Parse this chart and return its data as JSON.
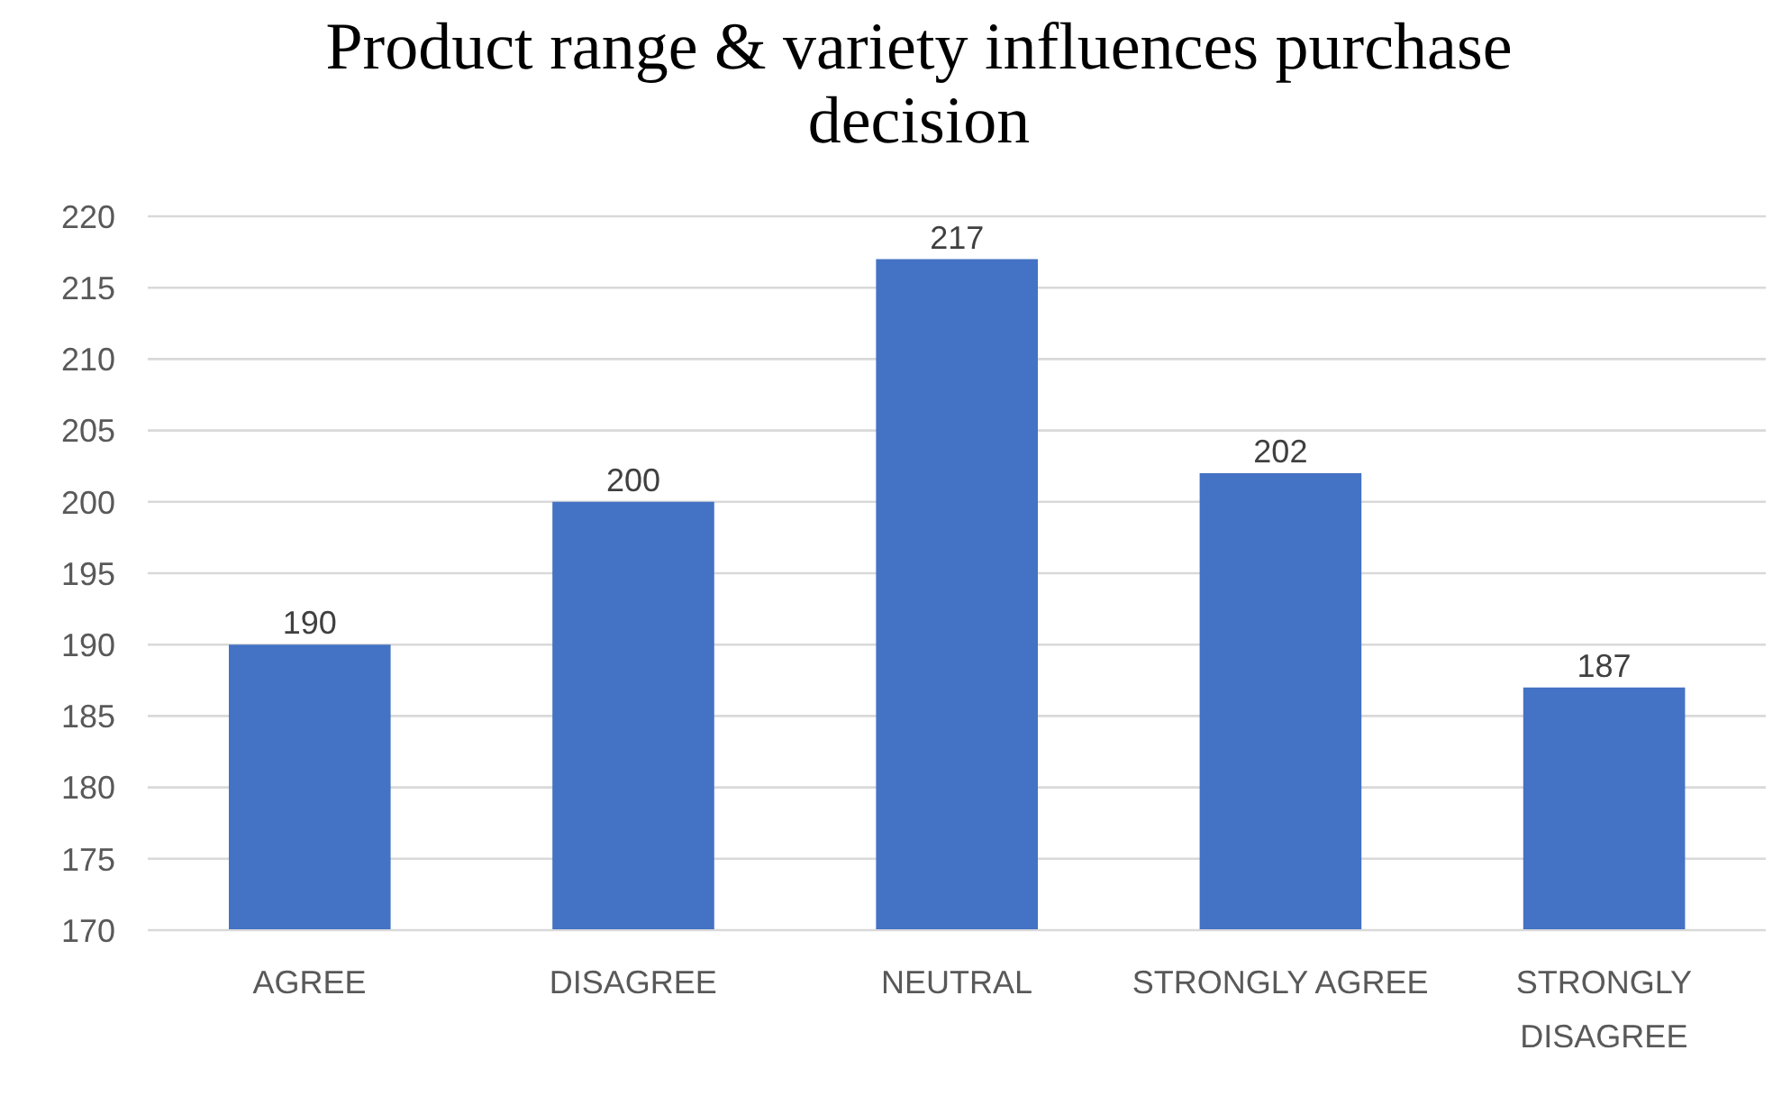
{
  "chart_data": {
    "type": "bar",
    "title": "Product range & variety influences purchase decision",
    "categories": [
      "AGREE",
      "DISAGREE",
      "NEUTRAL",
      "STRONGLY AGREE",
      "STRONGLY DISAGREE"
    ],
    "values": [
      190,
      200,
      217,
      202,
      187
    ],
    "color": "#4472c4",
    "ylim": [
      170,
      220
    ],
    "yticks": [
      170,
      175,
      180,
      185,
      190,
      195,
      200,
      205,
      210,
      215,
      220
    ],
    "grid": "y",
    "data_labels": true
  }
}
